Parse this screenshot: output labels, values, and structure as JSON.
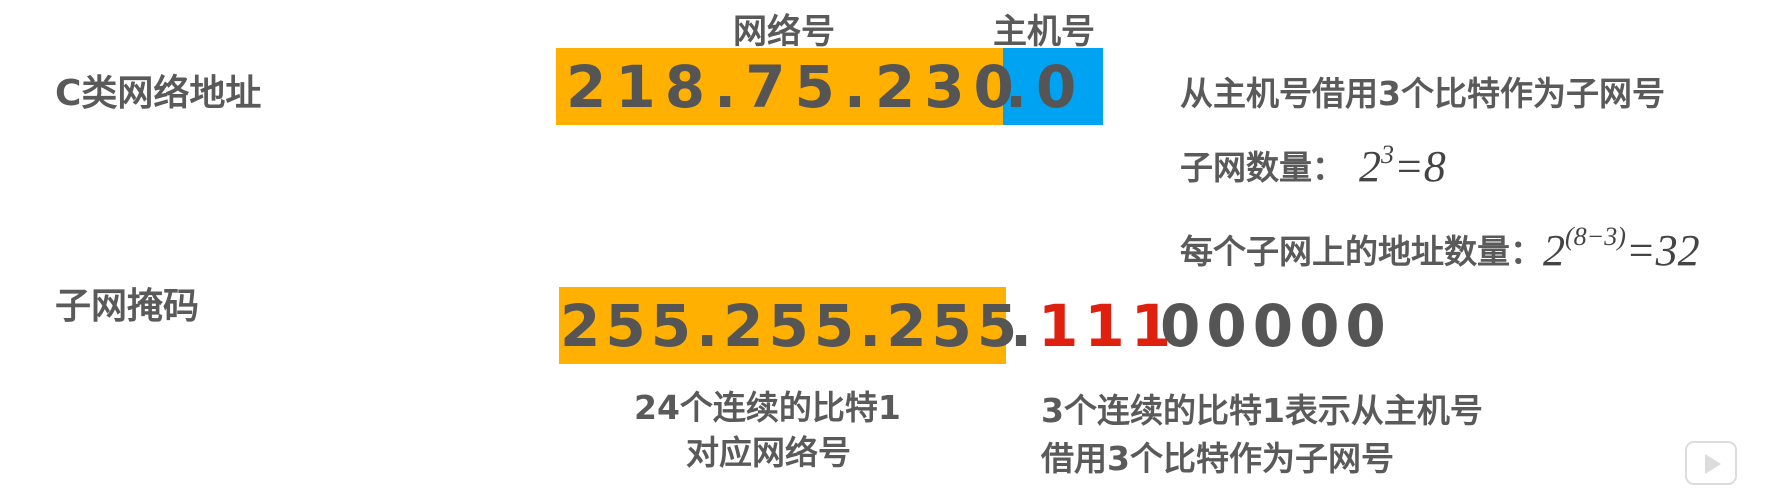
{
  "colors": {
    "network_bg": "#FFB000",
    "host_bg": "#00A2F2",
    "borrowed_bits": "#E0200F",
    "text": "#555555"
  },
  "labels": {
    "class_c_address": "C类网络地址",
    "subnet_mask": "子网掩码",
    "network_part": "网络号",
    "host_part": "主机号"
  },
  "address": {
    "network": "218.75.230",
    "host": ".0"
  },
  "mask": {
    "network": "255.255.255",
    "dot": ".",
    "borrowed": "111",
    "remaining": "00000"
  },
  "notes": {
    "borrow": "从主机号借用3个比特作为子网号",
    "subnet_count_label": "子网数量：",
    "subnet_count_base": "2",
    "subnet_count_exp": "3",
    "subnet_count_result": "=8",
    "addr_per_subnet_label": "每个子网上的地址数量：",
    "addr_per_subnet_base": "2",
    "addr_per_subnet_exp": "(8−3)",
    "addr_per_subnet_result": "=32"
  },
  "captions": {
    "left_line1": "24个连续的比特1",
    "left_line2": "对应网络号",
    "right_line1": "3个连续的比特1表示从主机号",
    "right_line2": "借用3个比特作为子网号"
  },
  "icons": {
    "watermark": "play-icon"
  }
}
